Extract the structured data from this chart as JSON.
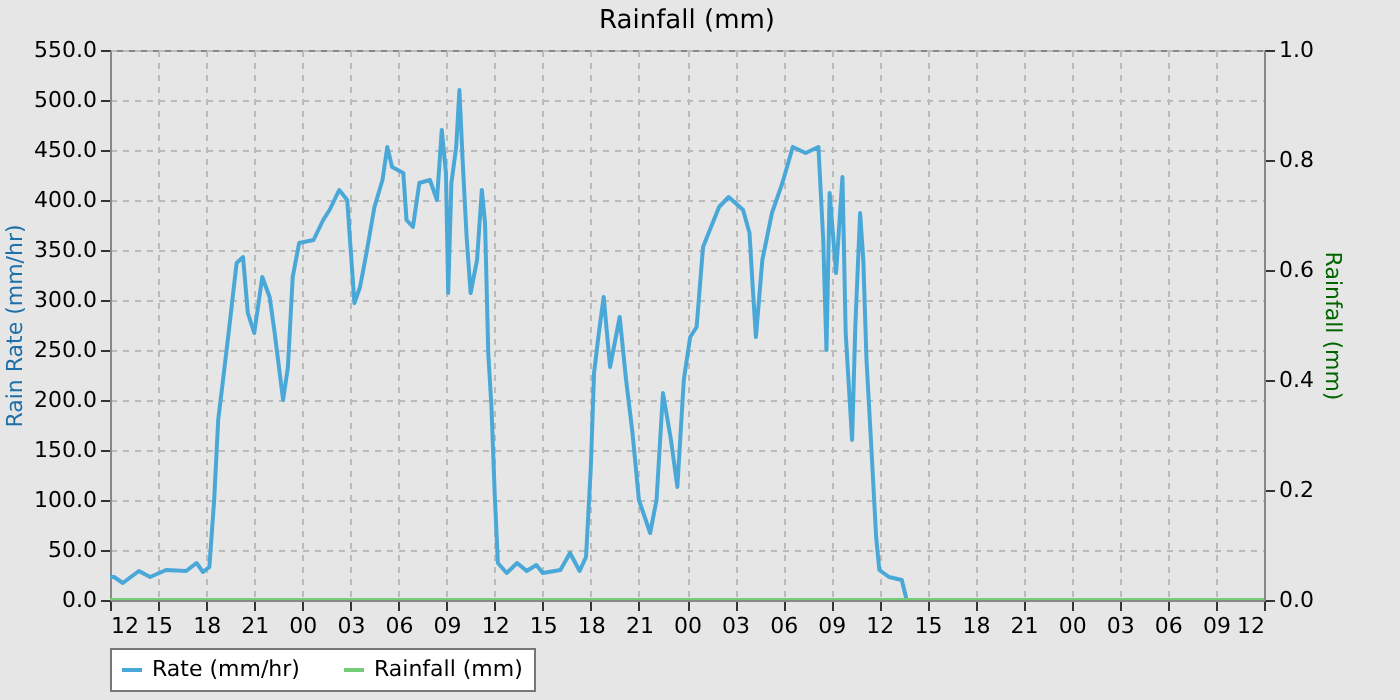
{
  "chart_data": {
    "type": "line",
    "title": "Rainfall (mm)",
    "ylabel": "Rain Rate (mm/hr)",
    "y2label": "Rainfall (mm)",
    "xlim": [
      12,
      84
    ],
    "xticks": [
      12,
      15,
      18,
      21,
      {
        "value": 24,
        "label": "00"
      },
      {
        "value": 27,
        "label": "03"
      },
      {
        "value": 30,
        "label": "06"
      },
      {
        "value": 33,
        "label": "09"
      },
      {
        "value": 36,
        "label": "12"
      },
      {
        "value": 39,
        "label": "15"
      },
      {
        "value": 42,
        "label": "18"
      },
      {
        "value": 45,
        "label": "21"
      },
      {
        "value": 48,
        "label": "00"
      },
      {
        "value": 51,
        "label": "03"
      },
      {
        "value": 54,
        "label": "06"
      },
      {
        "value": 57,
        "label": "09"
      },
      {
        "value": 60,
        "label": "12"
      },
      {
        "value": 63,
        "label": "15"
      },
      {
        "value": 66,
        "label": "18"
      },
      {
        "value": 69,
        "label": "21"
      },
      {
        "value": 72,
        "label": "00"
      },
      {
        "value": 75,
        "label": "03"
      },
      {
        "value": 78,
        "label": "06"
      },
      {
        "value": 81,
        "label": "09"
      },
      {
        "value": 84,
        "label": "12"
      }
    ],
    "ylim": [
      0,
      550
    ],
    "yticks": [
      {
        "value": 0,
        "label": "0.0"
      },
      {
        "value": 50,
        "label": "50.0"
      },
      {
        "value": 100,
        "label": "100.0"
      },
      {
        "value": 150,
        "label": "150.0"
      },
      {
        "value": 200,
        "label": "200.0"
      },
      {
        "value": 250,
        "label": "250.0"
      },
      {
        "value": 300,
        "label": "300.0"
      },
      {
        "value": 350,
        "label": "350.0"
      },
      {
        "value": 400,
        "label": "400.0"
      },
      {
        "value": 450,
        "label": "450.0"
      },
      {
        "value": 500,
        "label": "500.0"
      },
      {
        "value": 550,
        "label": "550.0"
      }
    ],
    "y2lim": [
      0,
      1
    ],
    "y2ticks": [
      {
        "value": 0,
        "label": "0.0"
      },
      {
        "value": 0.2,
        "label": "0.2"
      },
      {
        "value": 0.4,
        "label": "0.4"
      },
      {
        "value": 0.6,
        "label": "0.6"
      },
      {
        "value": 0.8,
        "label": "0.8"
      },
      {
        "value": 1,
        "label": "1.0"
      }
    ],
    "grid": true,
    "legend": "bottom",
    "series": [
      {
        "name": "Rate (mm/hr)",
        "color": "#4aa8d8",
        "x": [
          12,
          12.25,
          12.8,
          13.8,
          14.5,
          15.5,
          16.75,
          17.4,
          17.8,
          18.2,
          18.5,
          18.75,
          19.0,
          19.4,
          19.9,
          20.3,
          20.6,
          21.0,
          21.5,
          21.96,
          22.25,
          22.8,
          23.1,
          23.4,
          23.8,
          24.7,
          25.3,
          25.7,
          26.3,
          26.8,
          27.25,
          27.6,
          28.0,
          28.5,
          29.0,
          29.3,
          29.6,
          30.3,
          30.5,
          30.9,
          31.3,
          31.96,
          32.4,
          32.7,
          32.96,
          33.1,
          33.3,
          33.6,
          33.8,
          34.0,
          34.25,
          34.5,
          34.9,
          35.2,
          35.4,
          35.6,
          35.8,
          36.0,
          36.2,
          36.75,
          37.4,
          38.0,
          38.6,
          39.0,
          40.1,
          40.7,
          41.3,
          41.7,
          42.0,
          42.2,
          42.5,
          42.8,
          43.2,
          43.8,
          44.2,
          44.6,
          45.0,
          45.7,
          46.1,
          46.5,
          47.0,
          47.4,
          47.8,
          48.2,
          48.6,
          49.0,
          49.5,
          50.0,
          50.6,
          51.5,
          51.9,
          52.1,
          52.3,
          52.7,
          53.3,
          53.95,
          54.6,
          55.4,
          56.2,
          56.5,
          56.7,
          56.9,
          57.3,
          57.7,
          57.9,
          58.3,
          58.5,
          58.8,
          59.0,
          59.2,
          59.5,
          59.8,
          60.0,
          60.6,
          61.4,
          61.6,
          61.7,
          84
        ],
        "values": [
          23,
          23,
          17,
          29,
          23,
          30,
          29,
          37,
          28,
          33,
          100,
          180,
          213,
          267,
          337,
          343,
          287,
          267,
          323,
          303,
          270,
          200,
          233,
          323,
          357,
          360,
          380,
          390,
          410,
          400,
          297,
          313,
          347,
          393,
          420,
          453,
          433,
          427,
          380,
          373,
          417,
          420,
          400,
          470,
          427,
          307,
          417,
          453,
          510,
          440,
          363,
          307,
          340,
          410,
          377,
          247,
          193,
          107,
          37,
          27,
          37,
          29,
          35,
          27,
          30,
          47,
          29,
          43,
          133,
          227,
          267,
          303,
          233,
          283,
          220,
          167,
          100,
          67,
          100,
          207,
          160,
          113,
          220,
          263,
          273,
          353,
          373,
          393,
          403,
          390,
          367,
          313,
          263,
          340,
          387,
          417,
          453,
          447,
          453,
          360,
          250,
          407,
          327,
          423,
          267,
          160,
          273,
          387,
          340,
          240,
          153,
          63,
          30,
          23,
          20,
          7,
          0,
          0
        ]
      },
      {
        "name": "Rainfall (mm)",
        "type": "line",
        "axis": "y2",
        "color": "#77cc77",
        "x": [
          12,
          84
        ],
        "values": [
          0,
          0
        ]
      }
    ]
  }
}
